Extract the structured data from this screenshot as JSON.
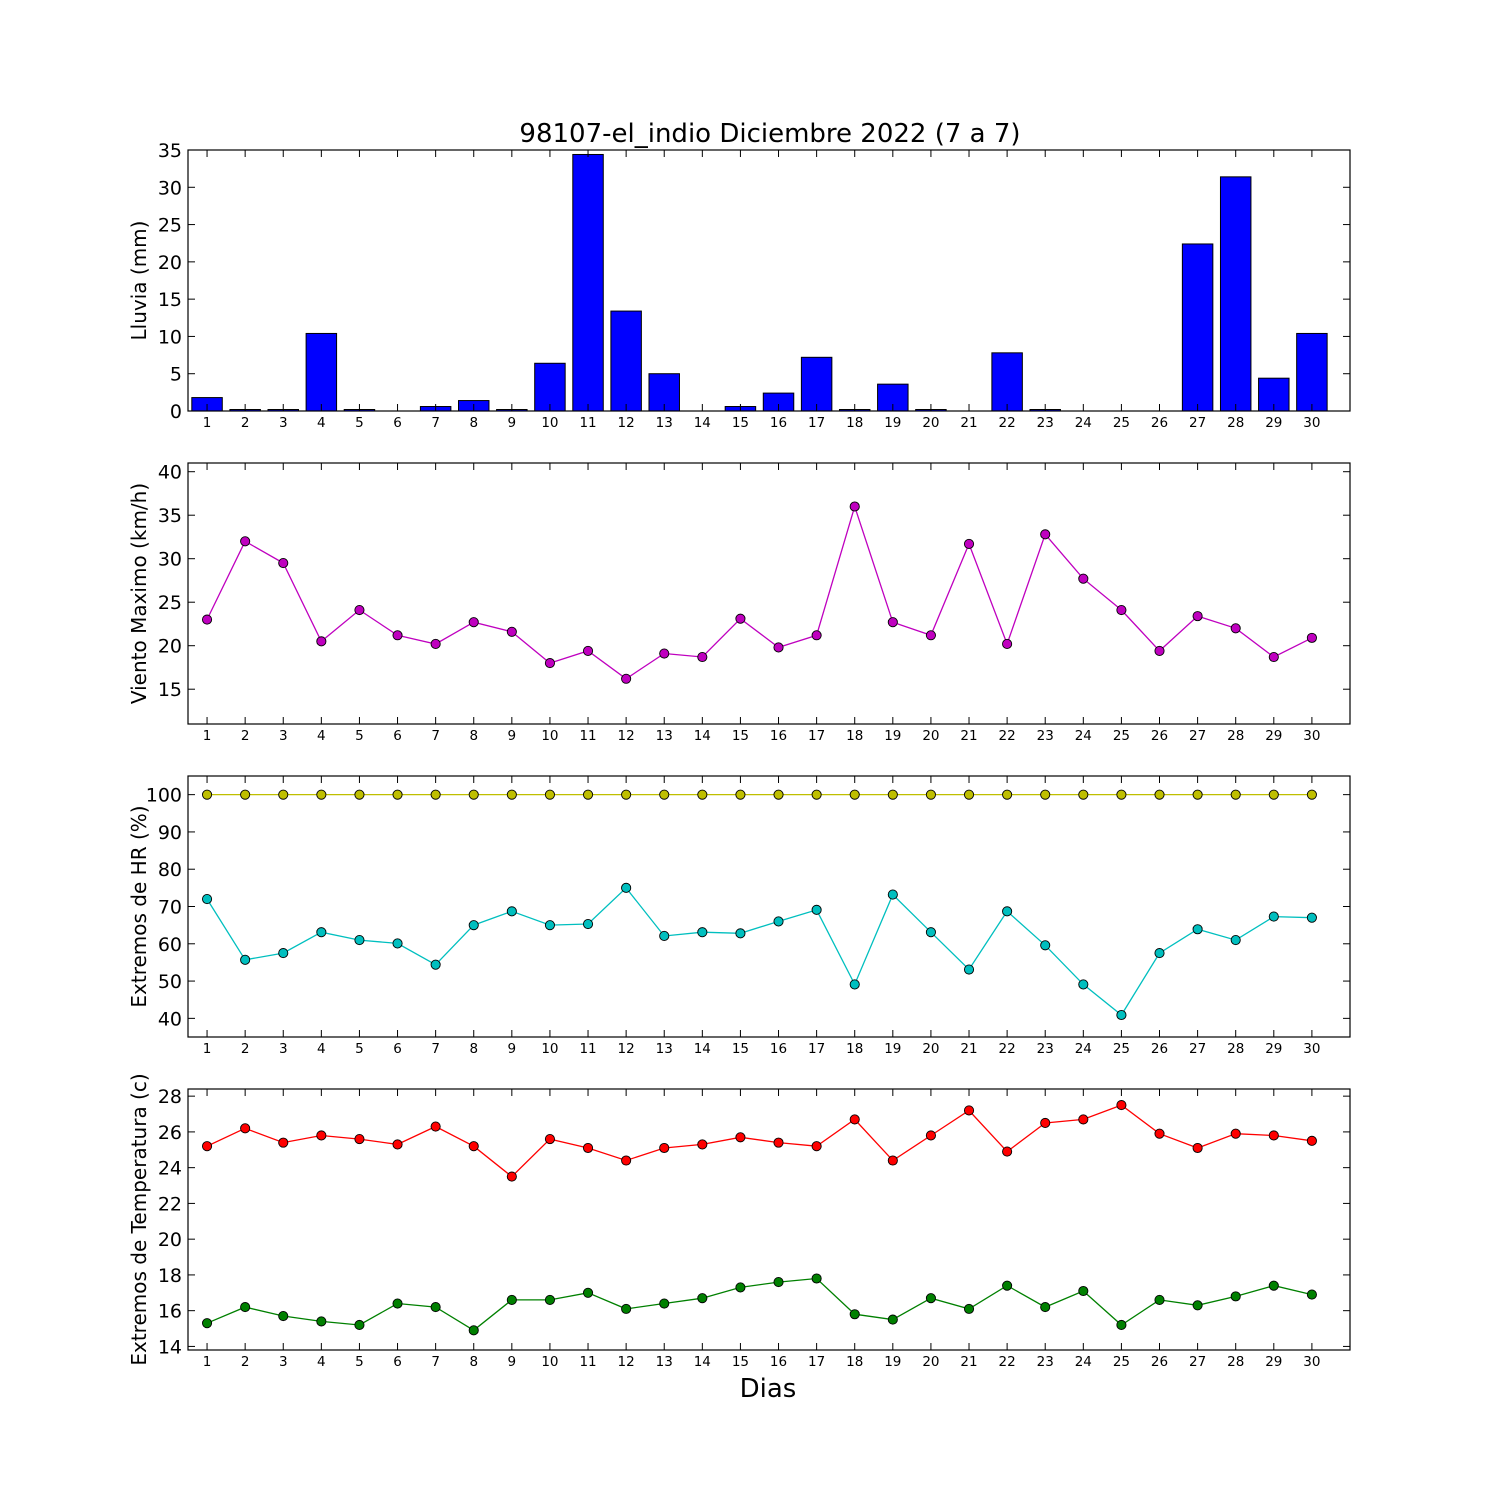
{
  "chart_data": [
    {
      "type": "bar",
      "title": "98107-el_indio Diciembre 2022  (7 a 7)",
      "ylabel": "Lluvia (mm)",
      "xlabel": "",
      "ylim": [
        0,
        35
      ],
      "yticks": [
        0,
        5,
        10,
        15,
        20,
        25,
        30,
        35
      ],
      "categories": [
        1,
        2,
        3,
        4,
        5,
        6,
        7,
        8,
        9,
        10,
        11,
        12,
        13,
        14,
        15,
        16,
        17,
        18,
        19,
        20,
        21,
        22,
        23,
        24,
        25,
        26,
        27,
        28,
        29,
        30
      ],
      "colors": {
        "bar": "#0000ff"
      },
      "series": [
        {
          "values": [
            1.8,
            0.2,
            0.2,
            10.4,
            0.2,
            0,
            0.6,
            1.4,
            0.2,
            6.4,
            34.4,
            13.4,
            5.0,
            0,
            0.6,
            2.4,
            7.2,
            0.2,
            3.6,
            0.2,
            0,
            7.8,
            0.2,
            0,
            0,
            0,
            22.4,
            31.4,
            4.4,
            10.4
          ]
        }
      ]
    },
    {
      "type": "line",
      "title": "",
      "ylabel": "Viento Maximo (km/h)",
      "xlabel": "",
      "ylim": [
        11,
        41
      ],
      "yticks": [
        15,
        20,
        25,
        30,
        35,
        40
      ],
      "categories": [
        1,
        2,
        3,
        4,
        5,
        6,
        7,
        8,
        9,
        10,
        11,
        12,
        13,
        14,
        15,
        16,
        17,
        18,
        19,
        20,
        21,
        22,
        23,
        24,
        25,
        26,
        27,
        28,
        29,
        30
      ],
      "series": [
        {
          "color": "#bf00bf",
          "values": [
            23.0,
            32.0,
            29.5,
            20.5,
            24.1,
            21.2,
            20.2,
            22.7,
            21.6,
            18.0,
            19.4,
            16.2,
            19.1,
            18.7,
            23.1,
            19.8,
            21.2,
            36.0,
            22.7,
            21.2,
            31.7,
            20.2,
            32.8,
            27.7,
            24.1,
            19.4,
            23.4,
            22.0,
            18.7,
            20.9
          ]
        }
      ]
    },
    {
      "type": "line",
      "title": "",
      "ylabel": "Extremos de HR (%)",
      "xlabel": "",
      "ylim": [
        35,
        105
      ],
      "yticks": [
        40,
        50,
        60,
        70,
        80,
        90,
        100
      ],
      "categories": [
        1,
        2,
        3,
        4,
        5,
        6,
        7,
        8,
        9,
        10,
        11,
        12,
        13,
        14,
        15,
        16,
        17,
        18,
        19,
        20,
        21,
        22,
        23,
        24,
        25,
        26,
        27,
        28,
        29,
        30
      ],
      "series": [
        {
          "color": "#bfbf00",
          "values": [
            100,
            100,
            100,
            100,
            100,
            100,
            100,
            100,
            100,
            100,
            100,
            100,
            100,
            100,
            100,
            100,
            100,
            100,
            100,
            100,
            100,
            100,
            100,
            100,
            100,
            100,
            100,
            100,
            100,
            100
          ]
        },
        {
          "color": "#00bfbf",
          "values": [
            72,
            55.7,
            57.5,
            63.1,
            61,
            60.1,
            54.4,
            65,
            68.7,
            65,
            65.3,
            75,
            62.1,
            63.1,
            62.8,
            66,
            69.1,
            49.1,
            73.2,
            63.1,
            53.1,
            68.7,
            59.6,
            49.1,
            40.9,
            57.5,
            63.9,
            61,
            67.3,
            67
          ]
        }
      ]
    },
    {
      "type": "line",
      "title": "",
      "ylabel": "Extremos de Temperatura (c)",
      "xlabel": "Dias",
      "ylim": [
        13.8,
        28.4
      ],
      "yticks": [
        14,
        16,
        18,
        20,
        22,
        24,
        26,
        28
      ],
      "categories": [
        1,
        2,
        3,
        4,
        5,
        6,
        7,
        8,
        9,
        10,
        11,
        12,
        13,
        14,
        15,
        16,
        17,
        18,
        19,
        20,
        21,
        22,
        23,
        24,
        25,
        26,
        27,
        28,
        29,
        30
      ],
      "series": [
        {
          "color": "#ff0000",
          "values": [
            25.2,
            26.2,
            25.4,
            25.8,
            25.6,
            25.3,
            26.3,
            25.2,
            23.5,
            25.6,
            25.1,
            24.4,
            25.1,
            25.3,
            25.7,
            25.4,
            25.2,
            26.7,
            24.4,
            25.8,
            27.2,
            24.9,
            26.5,
            26.7,
            27.5,
            25.9,
            25.1,
            25.9,
            25.8,
            25.5
          ]
        },
        {
          "color": "#008000",
          "values": [
            15.3,
            16.2,
            15.7,
            15.4,
            15.2,
            16.4,
            16.2,
            14.9,
            16.6,
            16.6,
            17.0,
            16.1,
            16.4,
            16.7,
            17.3,
            17.6,
            17.8,
            15.8,
            15.5,
            16.7,
            16.1,
            17.4,
            16.2,
            17.1,
            15.2,
            16.6,
            16.3,
            16.8,
            17.4,
            16.9
          ]
        }
      ]
    }
  ]
}
